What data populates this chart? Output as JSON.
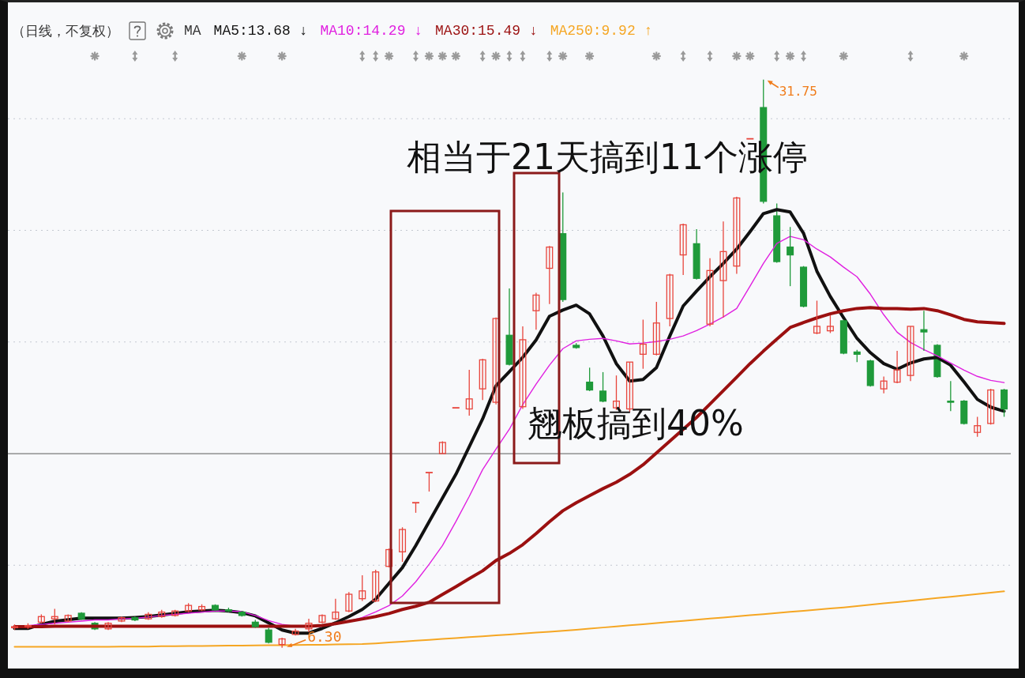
{
  "chart_data": {
    "type": "candlestick",
    "title": "（日线，不复权）",
    "legend_title": "MA",
    "legend": "top left",
    "tick_labels": false,
    "grid": "y",
    "marker": "none",
    "categories": [
      null,
      null,
      null,
      null,
      null,
      null,
      null,
      null,
      null,
      null,
      null,
      null,
      null,
      null,
      null,
      null,
      null,
      null,
      null,
      null,
      null,
      null,
      null,
      null,
      null,
      null,
      null,
      null,
      null,
      null,
      null,
      null,
      null,
      null,
      null,
      null,
      null,
      null,
      null,
      null,
      null,
      null,
      null,
      null,
      null,
      null,
      null,
      null,
      null,
      null,
      null,
      null,
      null,
      null,
      null,
      null,
      null,
      null,
      null,
      null,
      null,
      null,
      null,
      null,
      null,
      null,
      null,
      null,
      null,
      null,
      null,
      null,
      null,
      null,
      null
    ],
    "ohlc": [
      [
        7.2,
        7.35,
        7.1,
        7.25
      ],
      [
        7.25,
        7.4,
        7.15,
        7.3
      ],
      [
        7.45,
        7.8,
        7.4,
        7.7
      ],
      [
        7.6,
        8.05,
        7.35,
        7.7
      ],
      [
        7.5,
        7.8,
        7.45,
        7.75
      ],
      [
        7.85,
        7.9,
        7.55,
        7.6
      ],
      [
        7.4,
        7.45,
        7.1,
        7.15
      ],
      [
        7.15,
        7.45,
        7.1,
        7.4
      ],
      [
        7.5,
        7.7,
        7.45,
        7.65
      ],
      [
        7.65,
        7.7,
        7.5,
        7.55
      ],
      [
        7.6,
        7.9,
        7.55,
        7.8
      ],
      [
        7.7,
        8.0,
        7.65,
        7.9
      ],
      [
        7.75,
        8.0,
        7.7,
        7.95
      ],
      [
        7.95,
        8.3,
        7.9,
        8.2
      ],
      [
        8.0,
        8.25,
        7.95,
        8.15
      ],
      [
        8.2,
        8.25,
        7.95,
        8.0
      ],
      [
        8.0,
        8.1,
        7.9,
        7.95
      ],
      [
        7.9,
        7.95,
        7.7,
        7.75
      ],
      [
        7.45,
        7.55,
        7.2,
        7.25
      ],
      [
        7.1,
        7.2,
        6.5,
        6.55
      ],
      [
        6.45,
        6.75,
        6.3,
        6.7
      ],
      [
        6.9,
        7.15,
        6.85,
        7.05
      ],
      [
        7.15,
        7.6,
        7.0,
        7.4
      ],
      [
        7.45,
        7.8,
        7.4,
        7.75
      ],
      [
        7.6,
        8.5,
        7.55,
        7.9
      ],
      [
        7.95,
        8.8,
        7.9,
        8.7
      ],
      [
        8.5,
        9.55,
        8.4,
        8.85
      ],
      [
        8.4,
        9.8,
        8.35,
        9.7
      ],
      [
        9.95,
        10.75,
        9.9,
        10.7
      ],
      [
        10.6,
        11.7,
        10.15,
        11.6
      ],
      [
        12.8,
        12.8,
        12.35,
        12.8
      ],
      [
        14.15,
        14.15,
        13.3,
        14.15
      ],
      [
        15.0,
        15.55,
        15.0,
        15.5
      ],
      [
        17.05,
        17.05,
        17.05,
        17.05
      ],
      [
        17.0,
        18.75,
        16.7,
        17.45
      ],
      [
        17.9,
        19.25,
        17.4,
        19.2
      ],
      [
        17.3,
        21.1,
        17.2,
        21.05
      ],
      [
        20.3,
        22.4,
        18.95,
        19.0
      ],
      [
        17.1,
        20.7,
        17.0,
        20.1
      ],
      [
        21.4,
        22.2,
        20.55,
        22.1
      ],
      [
        23.3,
        24.3,
        21.7,
        24.25
      ],
      [
        24.85,
        26.7,
        21.8,
        21.9
      ],
      [
        19.85,
        19.95,
        19.7,
        19.75
      ],
      [
        18.2,
        18.85,
        17.8,
        17.85
      ],
      [
        17.8,
        18.65,
        17.3,
        17.35
      ],
      [
        17.05,
        18.5,
        16.95,
        17.35
      ],
      [
        17.0,
        19.1,
        16.85,
        19.1
      ],
      [
        19.45,
        21.0,
        18.8,
        19.9
      ],
      [
        19.45,
        21.8,
        19.4,
        20.85
      ],
      [
        21.05,
        23.05,
        20.7,
        23.0
      ],
      [
        23.9,
        25.3,
        23.0,
        25.25
      ],
      [
        24.4,
        25.05,
        22.8,
        22.85
      ],
      [
        20.8,
        23.75,
        20.7,
        23.2
      ],
      [
        22.75,
        25.4,
        21.1,
        24.05
      ],
      [
        23.4,
        26.5,
        23.05,
        26.45
      ],
      [
        29.1,
        29.1,
        29.1,
        29.1
      ],
      [
        30.5,
        31.75,
        26.2,
        26.3
      ],
      [
        25.65,
        26.2,
        23.55,
        23.6
      ],
      [
        24.25,
        25.15,
        22.5,
        23.9
      ],
      [
        23.35,
        23.4,
        21.55,
        21.6
      ],
      [
        20.4,
        21.85,
        20.35,
        20.7
      ],
      [
        20.5,
        21.2,
        20.4,
        20.7
      ],
      [
        20.95,
        21.0,
        19.45,
        19.5
      ],
      [
        19.55,
        19.65,
        19.1,
        19.45
      ],
      [
        19.15,
        19.2,
        18.0,
        18.05
      ],
      [
        17.9,
        18.45,
        17.7,
        18.25
      ],
      [
        18.2,
        19.6,
        18.15,
        18.75
      ],
      [
        18.5,
        20.7,
        18.25,
        20.7
      ],
      [
        20.55,
        21.4,
        19.6,
        20.45
      ],
      [
        19.85,
        19.9,
        18.4,
        18.45
      ],
      [
        17.35,
        18.25,
        16.9,
        17.3
      ],
      [
        17.35,
        17.4,
        16.3,
        16.35
      ],
      [
        15.95,
        16.65,
        15.75,
        16.25
      ],
      [
        16.35,
        17.9,
        16.3,
        17.85
      ],
      [
        17.85,
        17.9,
        16.65,
        17.0
      ]
    ],
    "colors": [
      "#e8453c",
      "#e8453c",
      "#e8453c",
      "#e8453c",
      "#e8453c",
      "#1f9a3a",
      "#1f9a3a",
      "#e8453c",
      "#e8453c",
      "#1f9a3a",
      "#e8453c",
      "#e8453c",
      "#e8453c",
      "#e8453c",
      "#e8453c",
      "#1f9a3a",
      "#1f9a3a",
      "#1f9a3a",
      "#1f9a3a",
      "#1f9a3a",
      "#e8453c",
      "#e8453c",
      "#e8453c",
      "#e8453c",
      "#e8453c",
      "#e8453c",
      "#e8453c",
      "#e8453c",
      "#e8453c",
      "#e8453c",
      "#e8453c",
      "#e8453c",
      "#e8453c",
      "#e8453c",
      "#e8453c",
      "#e8453c",
      "#e8453c",
      "#1f9a3a",
      "#e8453c",
      "#e8453c",
      "#e8453c",
      "#1f9a3a",
      "#1f9a3a",
      "#1f9a3a",
      "#1f9a3a",
      "#e8453c",
      "#e8453c",
      "#e8453c",
      "#e8453c",
      "#e8453c",
      "#e8453c",
      "#1f9a3a",
      "#e8453c",
      "#e8453c",
      "#e8453c",
      "#e8453c",
      "#1f9a3a",
      "#1f9a3a",
      "#1f9a3a",
      "#1f9a3a",
      "#e8453c",
      "#e8453c",
      "#1f9a3a",
      "#1f9a3a",
      "#1f9a3a",
      "#e8453c",
      "#e8453c",
      "#e8453c",
      "#1f9a3a",
      "#1f9a3a",
      "#1f9a3a",
      "#1f9a3a",
      "#e8453c",
      "#e8453c",
      "#1f9a3a"
    ],
    "series": [
      {
        "type": "line",
        "name": "MA5:13.68 ↓",
        "color": "#111111",
        "values": [
          7.17,
          7.17,
          7.35,
          7.49,
          7.56,
          7.63,
          7.63,
          7.63,
          7.63,
          7.66,
          7.7,
          7.77,
          7.84,
          7.91,
          7.95,
          7.98,
          7.95,
          7.88,
          7.73,
          7.42,
          7.1,
          6.96,
          6.96,
          7.17,
          7.42,
          7.7,
          8.02,
          8.48,
          9.19,
          9.89,
          10.88,
          11.95,
          13.01,
          14.07,
          15.31,
          16.55,
          18.04,
          18.67,
          19.31,
          20.09,
          21.15,
          21.43,
          21.65,
          21.26,
          20.27,
          19.03,
          18.25,
          18.32,
          18.85,
          20.27,
          21.61,
          22.28,
          22.92,
          23.52,
          24.16,
          24.94,
          25.75,
          25.93,
          25.82,
          24.87,
          23.17,
          22.04,
          21.08,
          20.16,
          19.52,
          19.03,
          18.78,
          19.06,
          19.24,
          19.31,
          18.96,
          18.21,
          17.43,
          17.08,
          16.9
        ]
      },
      {
        "type": "line",
        "name": "MA10:14.29 ↓",
        "color": "#e020e0",
        "values": [
          7.3,
          7.3,
          7.35,
          7.4,
          7.45,
          7.5,
          7.55,
          7.55,
          7.6,
          7.62,
          7.68,
          7.75,
          7.8,
          7.85,
          7.9,
          7.95,
          7.95,
          7.92,
          7.75,
          7.52,
          7.35,
          7.27,
          7.24,
          7.27,
          7.35,
          7.49,
          7.66,
          7.91,
          8.19,
          8.62,
          9.26,
          10.04,
          10.88,
          11.95,
          13.08,
          14.28,
          15.2,
          16.09,
          17.19,
          18.11,
          18.96,
          19.7,
          20.05,
          20.12,
          20.16,
          20.05,
          19.91,
          19.95,
          20.02,
          20.12,
          20.27,
          20.51,
          20.8,
          21.12,
          21.5,
          22.5,
          23.52,
          24.41,
          24.73,
          24.58,
          24.16,
          23.81,
          23.35,
          22.92,
          22.14,
          21.22,
          20.44,
          19.98,
          19.66,
          19.38,
          19.06,
          18.74,
          18.46,
          18.28,
          18.18
        ]
      },
      {
        "type": "line",
        "name": "MA30:15.49 ↓",
        "color": "#9b1010",
        "values": [
          7.25,
          7.25,
          7.25,
          7.27,
          7.27,
          7.27,
          7.27,
          7.27,
          7.27,
          7.27,
          7.27,
          7.27,
          7.27,
          7.27,
          7.27,
          7.27,
          7.27,
          7.27,
          7.27,
          7.27,
          7.27,
          7.27,
          7.27,
          7.3,
          7.38,
          7.49,
          7.59,
          7.7,
          7.84,
          8.02,
          8.16,
          8.34,
          8.69,
          9.04,
          9.4,
          9.75,
          10.21,
          10.53,
          10.92,
          11.42,
          11.95,
          12.44,
          12.8,
          13.12,
          13.43,
          13.72,
          14.07,
          14.5,
          15.03,
          15.56,
          16.09,
          16.62,
          17.22,
          17.82,
          18.42,
          19.03,
          19.59,
          20.12,
          20.65,
          20.87,
          21.08,
          21.26,
          21.4,
          21.5,
          21.54,
          21.5,
          21.5,
          21.47,
          21.5,
          21.4,
          21.22,
          21.01,
          20.9,
          20.87,
          20.83
        ]
      },
      {
        "type": "line",
        "name": "MA250:9.92 ↑",
        "color": "#f5a623",
        "values": [
          6.35,
          6.35,
          6.35,
          6.35,
          6.35,
          6.35,
          6.35,
          6.35,
          6.36,
          6.36,
          6.36,
          6.37,
          6.37,
          6.38,
          6.38,
          6.39,
          6.4,
          6.4,
          6.41,
          6.42,
          6.42,
          6.43,
          6.44,
          6.44,
          6.45,
          6.46,
          6.47,
          6.5,
          6.54,
          6.58,
          6.62,
          6.66,
          6.7,
          6.74,
          6.78,
          6.82,
          6.86,
          6.9,
          6.94,
          6.98,
          7.02,
          7.06,
          7.11,
          7.16,
          7.21,
          7.26,
          7.31,
          7.36,
          7.41,
          7.46,
          7.51,
          7.56,
          7.61,
          7.66,
          7.71,
          7.76,
          7.81,
          7.86,
          7.91,
          7.96,
          8.01,
          8.06,
          8.11,
          8.17,
          8.23,
          8.29,
          8.35,
          8.41,
          8.47,
          8.53,
          8.59,
          8.65,
          8.71,
          8.77,
          8.83
        ]
      }
    ],
    "yticks": [
      {
        "value": 10,
        "label": null
      },
      {
        "value": 20,
        "label": null
      },
      {
        "value": 25,
        "label": null
      },
      {
        "value": 30,
        "label": null
      }
    ],
    "ref_lines": [
      {
        "axis": "y",
        "value": 15,
        "color": "#7a7a7a",
        "line_style": "solid"
      }
    ],
    "annotations": [
      "相当于21天搞到11个涨停",
      "翘板搞到40%",
      "31.75",
      "6.30"
    ]
  }
}
